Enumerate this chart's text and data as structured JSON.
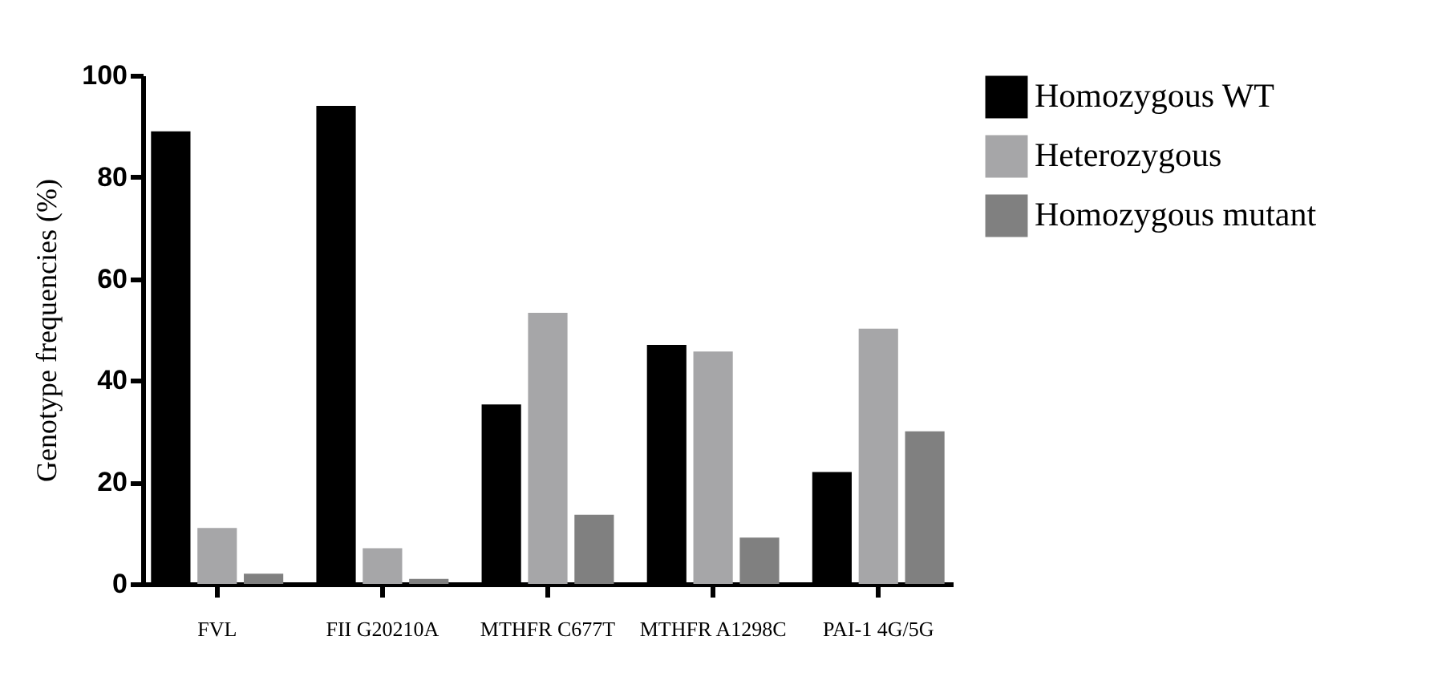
{
  "chart_data": {
    "type": "bar",
    "ylabel": "Genotype frequencies (%)",
    "categories": [
      "FVL",
      "FII G20210A",
      "MTHFR C677T",
      "MTHFR A1298C",
      "PAI-1 4G/5G"
    ],
    "series": [
      {
        "name": "Homozygous WT",
        "color": "#000000",
        "values": [
          89,
          94,
          35.3,
          47,
          22
        ]
      },
      {
        "name": "Heterozygous",
        "color": "#a6a6a8",
        "values": [
          11,
          7,
          53.3,
          45.7,
          50.2
        ]
      },
      {
        "name": "Homozygous mutant",
        "color": "#808080",
        "values": [
          2,
          1,
          13.6,
          9.1,
          30
        ]
      }
    ],
    "ylim": [
      0,
      100
    ],
    "yticks": [
      0,
      20,
      40,
      60,
      80,
      100
    ],
    "grid": false,
    "legend": "right"
  }
}
